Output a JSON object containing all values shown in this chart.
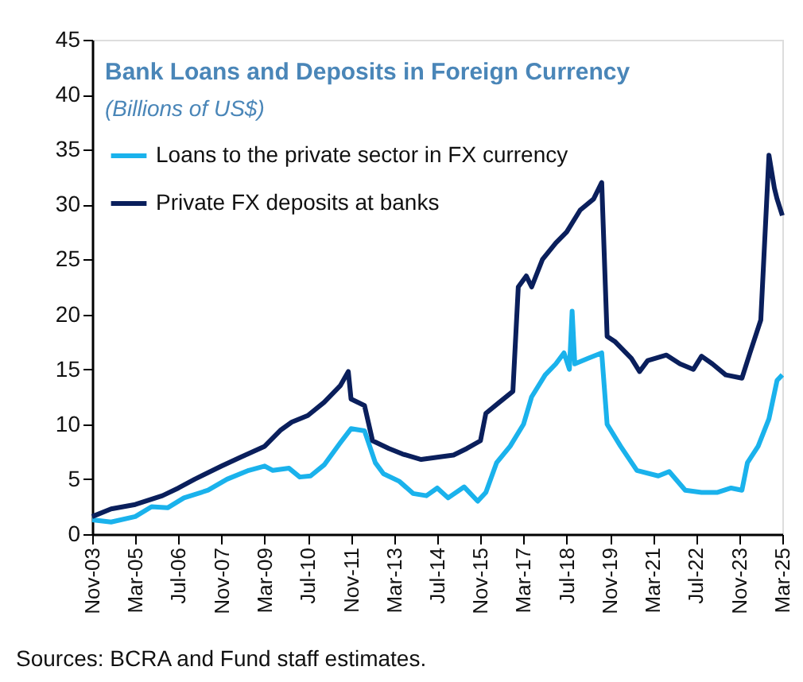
{
  "chart_data": {
    "type": "line",
    "title": "Bank Loans and Deposits in Foreign Currency",
    "subtitle": "(Billions of US$)",
    "annotations": [
      "Sources: BCRA and Fund staff estimates."
    ],
    "xlim": [
      "2003-11",
      "2025-03"
    ],
    "xticks": [
      {
        "value": "2003-11",
        "label": "Nov-03"
      },
      {
        "value": "2005-03",
        "label": "Mar-05"
      },
      {
        "value": "2006-07",
        "label": "Jul-06"
      },
      {
        "value": "2007-11",
        "label": "Nov-07"
      },
      {
        "value": "2009-03",
        "label": "Mar-09"
      },
      {
        "value": "2010-07",
        "label": "Jul-10"
      },
      {
        "value": "2011-11",
        "label": "Nov-11"
      },
      {
        "value": "2013-03",
        "label": "Mar-13"
      },
      {
        "value": "2014-07",
        "label": "Jul-14"
      },
      {
        "value": "2015-11",
        "label": "Nov-15"
      },
      {
        "value": "2017-03",
        "label": "Mar-17"
      },
      {
        "value": "2018-07",
        "label": "Jul-18"
      },
      {
        "value": "2019-11",
        "label": "Nov-19"
      },
      {
        "value": "2021-03",
        "label": "Mar-21"
      },
      {
        "value": "2022-07",
        "label": "Jul-22"
      },
      {
        "value": "2023-11",
        "label": "Nov-23"
      },
      {
        "value": "2025-03",
        "label": "Mar-25"
      }
    ],
    "ylim": [
      0,
      45
    ],
    "yticks": [
      0,
      5,
      10,
      15,
      20,
      25,
      30,
      35,
      40,
      45
    ],
    "grid": false,
    "legend": "top left",
    "line_style": "solid",
    "marker": "none",
    "series": [
      {
        "name": "Loans to the private sector in FX currency",
        "color": "#1ab2ec",
        "x": [
          "2003-11",
          "2004-06",
          "2005-03",
          "2005-09",
          "2006-03",
          "2006-09",
          "2007-06",
          "2008-01",
          "2008-09",
          "2009-03",
          "2009-06",
          "2009-12",
          "2010-04",
          "2010-08",
          "2011-01",
          "2011-07",
          "2011-11",
          "2012-04",
          "2012-08",
          "2012-11",
          "2013-05",
          "2013-10",
          "2014-03",
          "2014-07",
          "2014-11",
          "2015-05",
          "2015-10",
          "2016-01",
          "2016-05",
          "2016-10",
          "2017-03",
          "2017-06",
          "2017-11",
          "2018-03",
          "2018-06",
          "2018-08",
          "2018-09",
          "2018-10",
          "2019-03",
          "2019-08",
          "2019-10",
          "2020-03",
          "2020-09",
          "2021-05",
          "2021-09",
          "2022-03",
          "2022-09",
          "2023-03",
          "2023-08",
          "2023-12",
          "2024-02",
          "2024-06",
          "2024-10",
          "2025-01",
          "2025-03"
        ],
        "values": [
          1.3,
          1.1,
          1.6,
          2.5,
          2.4,
          3.3,
          4.0,
          5.0,
          5.8,
          6.2,
          5.8,
          6.0,
          5.2,
          5.3,
          6.3,
          8.3,
          9.6,
          9.4,
          6.5,
          5.5,
          4.8,
          3.7,
          3.5,
          4.2,
          3.3,
          4.3,
          3.0,
          3.8,
          6.5,
          8.0,
          10.0,
          12.5,
          14.5,
          15.5,
          16.5,
          15.0,
          20.3,
          15.5,
          16.0,
          16.5,
          10.0,
          8.0,
          5.8,
          5.3,
          5.7,
          4.0,
          3.8,
          3.8,
          4.2,
          4.0,
          6.5,
          8.0,
          10.5,
          14.0,
          14.5
        ]
      },
      {
        "name": "Private FX deposits at banks",
        "color": "#0a1f5c",
        "x": [
          "2003-11",
          "2004-06",
          "2005-03",
          "2006-01",
          "2006-07",
          "2007-01",
          "2007-11",
          "2008-06",
          "2009-03",
          "2009-09",
          "2010-01",
          "2010-07",
          "2011-01",
          "2011-07",
          "2011-10",
          "2011-11",
          "2012-04",
          "2012-07",
          "2013-01",
          "2013-06",
          "2014-01",
          "2014-07",
          "2015-01",
          "2015-06",
          "2015-11",
          "2016-01",
          "2016-06",
          "2016-11",
          "2017-01",
          "2017-04",
          "2017-06",
          "2017-10",
          "2018-03",
          "2018-07",
          "2018-12",
          "2019-05",
          "2019-08",
          "2019-10",
          "2020-01",
          "2020-07",
          "2020-10",
          "2021-01",
          "2021-08",
          "2022-01",
          "2022-06",
          "2022-09",
          "2023-01",
          "2023-06",
          "2023-12",
          "2024-03",
          "2024-07",
          "2024-10",
          "2024-12",
          "2025-01",
          "2025-03"
        ],
        "values": [
          1.6,
          2.3,
          2.7,
          3.5,
          4.2,
          5.0,
          6.2,
          7.0,
          8.0,
          9.5,
          10.2,
          10.8,
          12.0,
          13.5,
          14.8,
          12.3,
          11.7,
          8.5,
          7.8,
          7.3,
          6.8,
          7.0,
          7.2,
          7.8,
          8.5,
          11.0,
          12.0,
          13.0,
          22.5,
          23.5,
          22.5,
          25.0,
          26.5,
          27.5,
          29.5,
          30.5,
          32.0,
          18.0,
          17.5,
          16.0,
          14.8,
          15.8,
          16.3,
          15.5,
          15.0,
          16.2,
          15.5,
          14.5,
          14.2,
          16.5,
          19.5,
          34.5,
          31.5,
          30.5,
          29.0
        ]
      }
    ]
  }
}
